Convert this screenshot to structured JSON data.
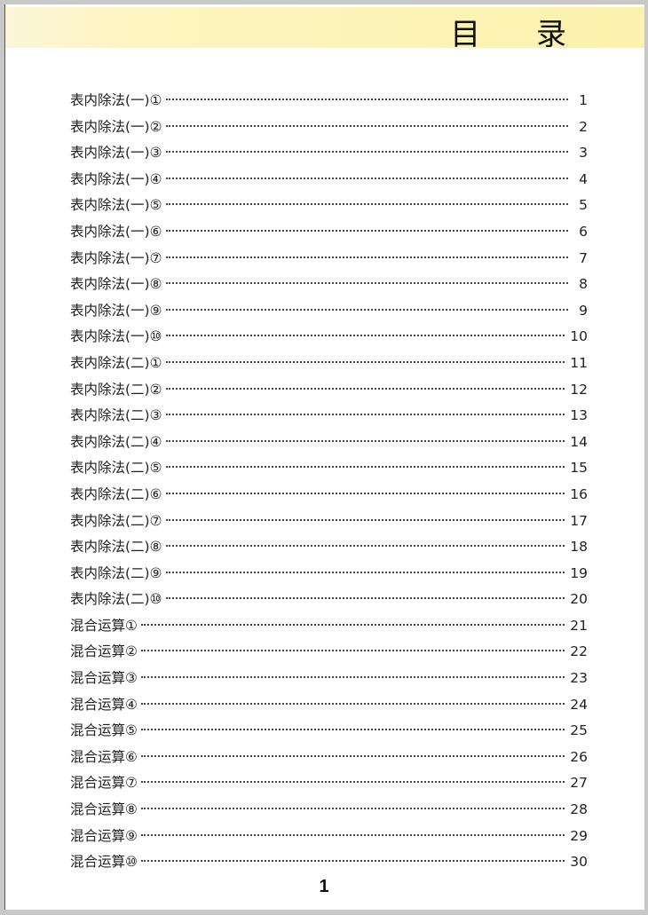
{
  "title": "目 录",
  "entries": [
    {
      "label": "表内除法(一)①",
      "page": "1"
    },
    {
      "label": "表内除法(一)②",
      "page": "2"
    },
    {
      "label": "表内除法(一)③",
      "page": "3"
    },
    {
      "label": "表内除法(一)④",
      "page": "4"
    },
    {
      "label": "表内除法(一)⑤",
      "page": "5"
    },
    {
      "label": "表内除法(一)⑥",
      "page": "6"
    },
    {
      "label": "表内除法(一)⑦",
      "page": "7"
    },
    {
      "label": "表内除法(一)⑧",
      "page": "8"
    },
    {
      "label": "表内除法(一)⑨",
      "page": "9"
    },
    {
      "label": "表内除法(一)⑩",
      "page": "10"
    },
    {
      "label": "表内除法(二)①",
      "page": "11"
    },
    {
      "label": "表内除法(二)②",
      "page": "12"
    },
    {
      "label": "表内除法(二)③",
      "page": "13"
    },
    {
      "label": "表内除法(二)④",
      "page": "14"
    },
    {
      "label": "表内除法(二)⑤",
      "page": "15"
    },
    {
      "label": "表内除法(二)⑥",
      "page": "16"
    },
    {
      "label": "表内除法(二)⑦",
      "page": "17"
    },
    {
      "label": "表内除法(二)⑧",
      "page": "18"
    },
    {
      "label": "表内除法(二)⑨",
      "page": "19"
    },
    {
      "label": "表内除法(二)⑩",
      "page": "20"
    },
    {
      "label": "混合运算①",
      "page": "21"
    },
    {
      "label": "混合运算②",
      "page": "22"
    },
    {
      "label": "混合运算③",
      "page": "23"
    },
    {
      "label": "混合运算④",
      "page": "24"
    },
    {
      "label": "混合运算⑤",
      "page": "25"
    },
    {
      "label": "混合运算⑥",
      "page": "26"
    },
    {
      "label": "混合运算⑦",
      "page": "27"
    },
    {
      "label": "混合运算⑧",
      "page": "28"
    },
    {
      "label": "混合运算⑨",
      "page": "29"
    },
    {
      "label": "混合运算⑩",
      "page": "30"
    }
  ],
  "page_number": "1"
}
